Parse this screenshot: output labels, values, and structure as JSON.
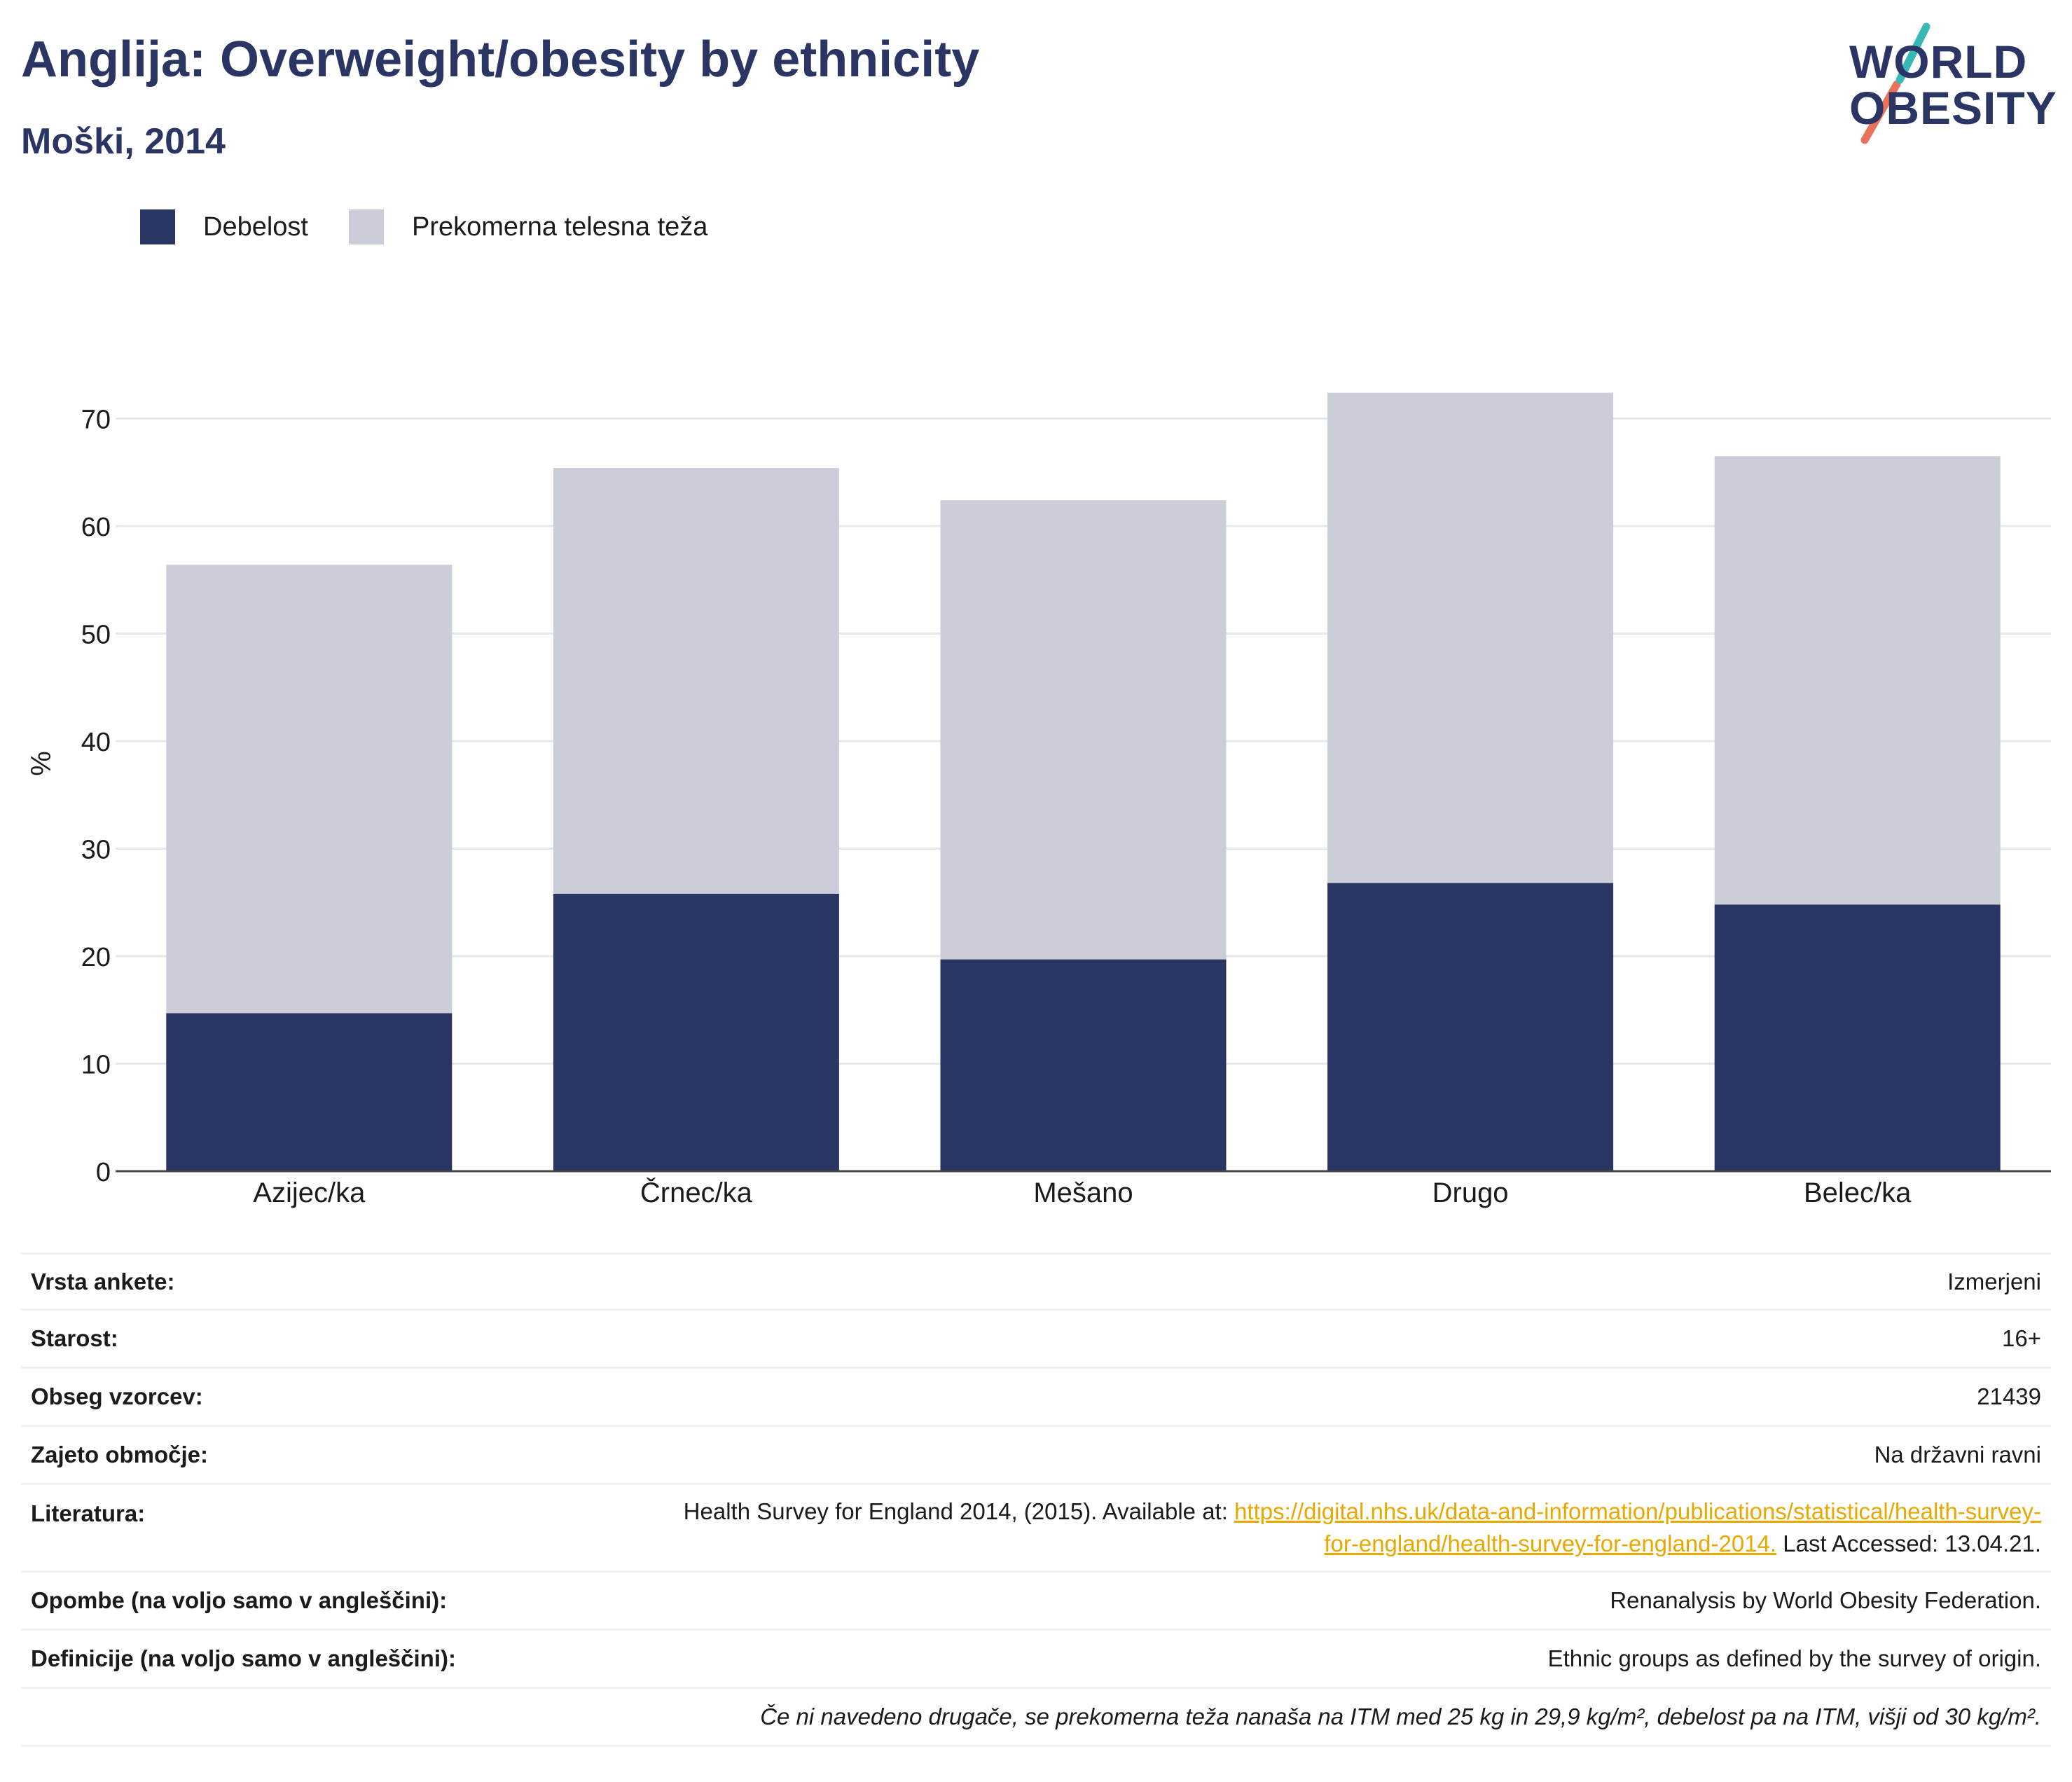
{
  "header": {
    "title": "Anglija: Overweight/obesity by ethnicity",
    "subtitle": "Moški, 2014"
  },
  "logo": {
    "line1": "WORLD",
    "line2": "OBESITY"
  },
  "colors": {
    "obesity": "#2a3563",
    "overweight": "#cbcdd8",
    "accent": "#e8a800"
  },
  "chart_data": {
    "type": "bar",
    "stacked": true,
    "categories": [
      "Azijec/ka",
      "Črnec/ka",
      "Mešano",
      "Drugo",
      "Belec/ka"
    ],
    "series": [
      {
        "name": "Debelost",
        "color": "#2a3563",
        "values": [
          14.7,
          25.8,
          19.7,
          26.8,
          24.8
        ]
      },
      {
        "name": "Prekomerna telesna teža",
        "color": "#cbcdd8",
        "values": [
          41.7,
          39.6,
          42.7,
          45.6,
          41.7
        ]
      }
    ],
    "ylabel": "%",
    "ylim": [
      0,
      80
    ],
    "yticks": [
      0,
      10,
      20,
      30,
      40,
      50,
      60,
      70
    ],
    "grid": true,
    "legend": "top-left"
  },
  "meta": {
    "rows": [
      {
        "label": "Vrsta ankete:",
        "value": "Izmerjeni"
      },
      {
        "label": "Starost:",
        "value": "16+"
      },
      {
        "label": "Obseg vzorcev:",
        "value": "21439"
      },
      {
        "label": "Zajeto območje:",
        "value": "Na državni ravni"
      }
    ],
    "literature": {
      "label": "Literatura:",
      "prefix": "Health Survey for England 2014, (2015). Available at: ",
      "link_line1": "https://digital.nhs.uk/data-and-information/publications/statistical/health-survey-",
      "link_line2": "for-england/health-survey-for-england-2014.",
      "suffix": " Last Accessed: 13.04.21."
    },
    "notes": {
      "label": "Opombe (na voljo samo v angleščini):",
      "value": "Renanalysis by World Obesity Federation."
    },
    "definitions": {
      "label": "Definicije (na voljo samo v angleščini):",
      "value": "Ethnic groups as defined by the survey of origin."
    },
    "footnote": "Če ni navedeno drugače, se prekomerna teža nanaša na ITM med 25 kg in 29,9 kg/m², debelost pa na ITM, višji od 30 kg/m²."
  }
}
